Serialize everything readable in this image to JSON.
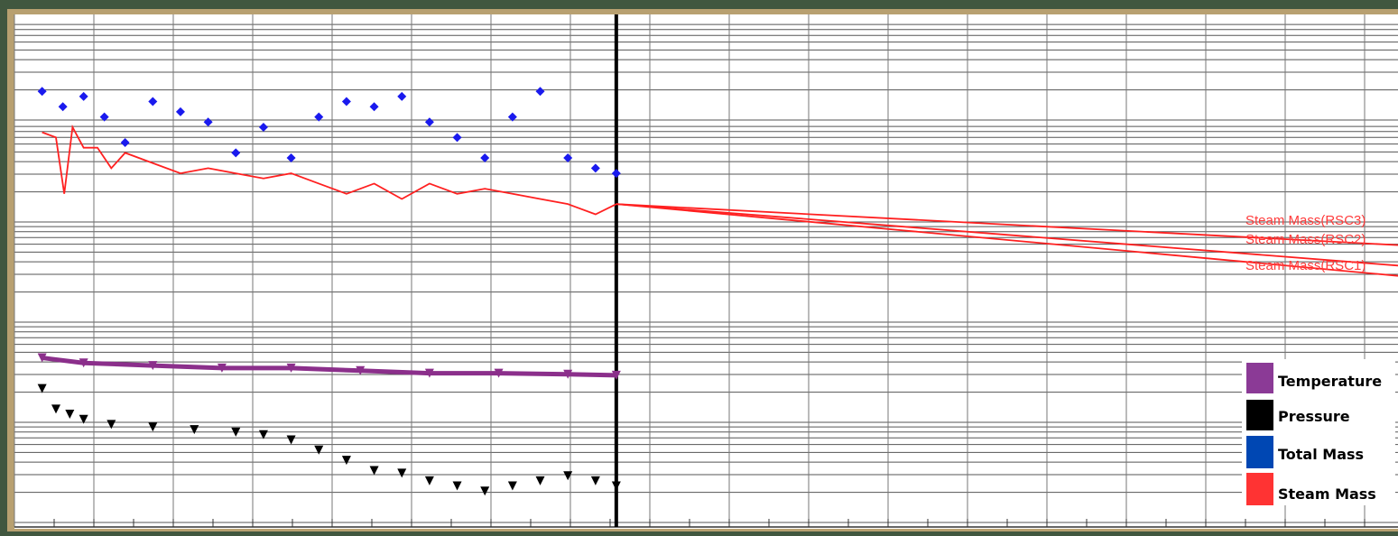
{
  "chart_data": {
    "type": "line",
    "title": "",
    "xlabel": "",
    "ylabel": "",
    "grid": true,
    "legend_placement": "bottom-right",
    "xlim": [
      0,
      100
    ],
    "ylim": [
      0,
      100
    ],
    "history_end_x": 43.5,
    "series": [
      {
        "name": "Total Mass",
        "marker": "diamond",
        "color": "#1a1aee",
        "x": [
          2,
          3.5,
          5,
          6.5,
          8,
          10,
          12,
          14,
          16,
          18,
          20,
          22,
          24,
          26,
          28,
          30,
          32,
          34,
          36,
          38,
          40,
          42,
          43.5
        ],
        "y": [
          85,
          82,
          84,
          80,
          75,
          83,
          81,
          79,
          73,
          78,
          72,
          80,
          83,
          82,
          84,
          79,
          76,
          72,
          80,
          85,
          72,
          70,
          69
        ]
      },
      {
        "name": "Steam Mass",
        "marker": "line",
        "color": "#ff2020",
        "x": [
          2,
          3,
          3.6,
          4.2,
          5,
          6,
          7,
          8,
          10,
          12,
          14,
          16,
          18,
          20,
          22,
          24,
          26,
          28,
          30,
          32,
          34,
          36,
          38,
          40,
          42,
          43.5
        ],
        "y": [
          77,
          76,
          65,
          78,
          74,
          74,
          70,
          73,
          71,
          69,
          70,
          69,
          68,
          69,
          67,
          65,
          67,
          64,
          67,
          65,
          66,
          65,
          64,
          63,
          61,
          63
        ]
      },
      {
        "name": "Temperature",
        "marker": "triangle-down",
        "color": "#8b2f8b",
        "x": [
          2,
          5,
          10,
          15,
          20,
          25,
          30,
          35,
          40,
          43.5
        ],
        "y": [
          33,
          32,
          31.5,
          31,
          31,
          30.5,
          30,
          30,
          29.8,
          29.6
        ]
      },
      {
        "name": "Pressure",
        "marker": "triangle-down",
        "color": "#000000",
        "x": [
          2,
          3,
          4,
          5,
          7,
          10,
          13,
          16,
          18,
          20,
          22,
          24,
          26,
          28,
          30,
          32,
          34,
          36,
          38,
          40,
          42,
          43.5
        ],
        "y": [
          27,
          23,
          22,
          21,
          20,
          19.5,
          19,
          18.5,
          18,
          17,
          15,
          13,
          11,
          10.5,
          9,
          8,
          7,
          8,
          9,
          10,
          9,
          8
        ]
      }
    ],
    "forecasts": [
      {
        "label": "Steam Mass(RSC3)",
        "color": "#ff2020",
        "x": [
          43.5,
          100
        ],
        "y": [
          63,
          55
        ]
      },
      {
        "label": "Steam Mass(RSC2)",
        "color": "#ff2020",
        "x": [
          43.5,
          100
        ],
        "y": [
          63,
          51
        ]
      },
      {
        "label": "Steam Mass(RSC1)",
        "color": "#ff2020",
        "x": [
          43.5,
          100
        ],
        "y": [
          63,
          49
        ]
      }
    ],
    "legend": [
      {
        "label": "Temperature",
        "color": "#8b3a96"
      },
      {
        "label": "Pressure",
        "color": "#000000"
      },
      {
        "label": "Total Mass",
        "color": "#0047b3"
      },
      {
        "label": "Steam Mass",
        "color": "#ff3333"
      }
    ]
  }
}
